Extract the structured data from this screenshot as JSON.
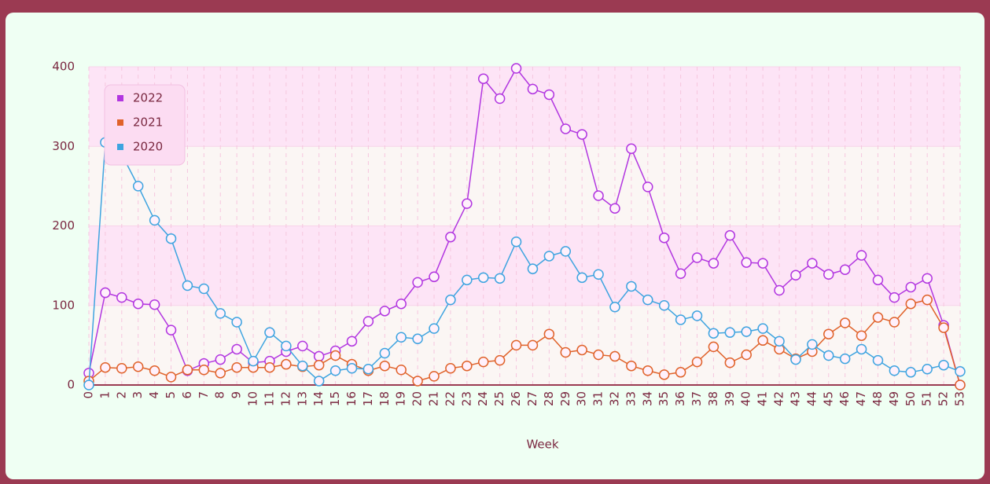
{
  "chart_data": {
    "type": "line",
    "xlabel": "Week",
    "x": [
      0,
      1,
      2,
      3,
      4,
      5,
      6,
      7,
      8,
      9,
      10,
      11,
      12,
      13,
      14,
      15,
      16,
      17,
      18,
      19,
      20,
      21,
      22,
      23,
      24,
      25,
      26,
      27,
      28,
      29,
      30,
      31,
      32,
      33,
      34,
      35,
      36,
      37,
      38,
      39,
      40,
      41,
      42,
      43,
      44,
      45,
      46,
      47,
      48,
      49,
      50,
      51,
      52,
      53
    ],
    "xlim": [
      0,
      53
    ],
    "xticks": [
      0,
      1,
      2,
      3,
      4,
      5,
      6,
      7,
      8,
      9,
      10,
      11,
      12,
      13,
      14,
      15,
      16,
      17,
      18,
      19,
      20,
      21,
      22,
      23,
      24,
      25,
      26,
      27,
      28,
      29,
      30,
      31,
      32,
      33,
      34,
      35,
      36,
      37,
      38,
      39,
      40,
      41,
      42,
      43,
      44,
      45,
      46,
      47,
      48,
      49,
      50,
      51,
      52,
      53
    ],
    "ylim": [
      0,
      400
    ],
    "yticks": [
      0,
      100,
      200,
      300,
      400
    ],
    "grid": true,
    "legend": "upper left",
    "series": [
      {
        "name": "2022",
        "color": "#b236e0",
        "values": [
          15,
          116,
          110,
          102,
          101,
          69,
          18,
          27,
          32,
          45,
          28,
          30,
          42,
          49,
          36,
          43,
          55,
          80,
          93,
          102,
          129,
          136,
          186,
          228,
          385,
          360,
          398,
          372,
          365,
          322,
          315,
          238,
          222,
          297,
          249,
          185,
          140,
          160,
          153,
          188,
          154,
          153,
          119,
          138,
          153,
          139,
          145,
          163,
          132,
          110,
          123,
          134,
          75,
          0
        ]
      },
      {
        "name": "2021",
        "color": "#e0622a",
        "values": [
          5,
          22,
          21,
          23,
          18,
          10,
          19,
          19,
          15,
          22,
          22,
          22,
          26,
          23,
          25,
          37,
          26,
          18,
          24,
          19,
          5,
          11,
          21,
          24,
          29,
          31,
          50,
          50,
          64,
          41,
          44,
          38,
          36,
          24,
          18,
          13,
          16,
          29,
          48,
          28,
          38,
          56,
          45,
          33,
          42,
          64,
          78,
          62,
          85,
          79,
          102,
          107,
          72,
          0
        ]
      },
      {
        "name": "2020",
        "color": "#3ea4e0",
        "values": [
          0,
          305,
          290,
          250,
          207,
          184,
          125,
          121,
          90,
          79,
          30,
          66,
          49,
          24,
          5,
          18,
          21,
          20,
          40,
          60,
          58,
          71,
          107,
          132,
          135,
          134,
          180,
          146,
          162,
          168,
          135,
          139,
          98,
          124,
          107,
          100,
          82,
          87,
          65,
          66,
          67,
          71,
          55,
          32,
          51,
          37,
          33,
          45,
          31,
          18,
          16,
          20,
          25,
          17
        ]
      }
    ]
  }
}
